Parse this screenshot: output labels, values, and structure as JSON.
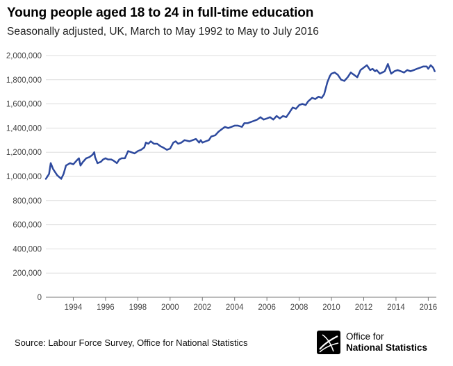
{
  "header": {
    "title": "Young people aged 18 to 24 in full-time education",
    "subtitle": "Seasonally adjusted, UK, March to May 1992 to May to July 2016"
  },
  "footer": {
    "source": "Source: Labour Force Survey, Office for National Statistics",
    "logo_line1": "Office for",
    "logo_line2": "National Statistics"
  },
  "colors": {
    "series": "#2e4a9e",
    "axis": "#777777",
    "grid": "#dddddd"
  },
  "chart_data": {
    "type": "line",
    "title": "Young people aged 18 to 24 in full-time education",
    "subtitle": "Seasonally adjusted, UK, March to May 1992 to May to July 2016",
    "xlim": [
      1992.3,
      2016.5
    ],
    "ylim": [
      0,
      2000000
    ],
    "yticks": [
      0,
      200000,
      400000,
      600000,
      800000,
      1000000,
      1200000,
      1400000,
      1600000,
      1800000,
      2000000
    ],
    "ytick_labels": [
      "0",
      "200,000",
      "400,000",
      "600,000",
      "800,000",
      "1,000,000",
      "1,200,000",
      "1,400,000",
      "1,600,000",
      "1,800,000",
      "2,000,000"
    ],
    "xticks": [
      1994,
      1996,
      1998,
      2000,
      2002,
      2004,
      2006,
      2008,
      2010,
      2012,
      2014,
      2016
    ],
    "xtick_labels": [
      "1994",
      "1996",
      "1998",
      "2000",
      "2002",
      "2004",
      "2006",
      "2008",
      "2010",
      "2012",
      "2014",
      "2016"
    ],
    "grid": true,
    "series": [
      {
        "x": [
          1992.3,
          1992.5,
          1992.6,
          1992.75,
          1993.0,
          1993.25,
          1993.4,
          1993.55,
          1993.8,
          1994.0,
          1994.2,
          1994.35,
          1994.45,
          1994.6,
          1994.8,
          1995.0,
          1995.2,
          1995.3,
          1995.35,
          1995.5,
          1995.7,
          1995.85,
          1996.0,
          1996.15,
          1996.35,
          1996.5,
          1996.7,
          1996.85,
          1997.0,
          1997.2,
          1997.4,
          1997.6,
          1997.8,
          1998.0,
          1998.2,
          1998.4,
          1998.5,
          1998.65,
          1998.8,
          1999.0,
          1999.2,
          1999.4,
          1999.55,
          1999.8,
          2000.0,
          2000.2,
          2000.35,
          2000.5,
          2000.7,
          2000.9,
          2001.2,
          2001.4,
          2001.6,
          2001.8,
          2001.9,
          2002.0,
          2002.2,
          2002.4,
          2002.55,
          2002.8,
          2003.0,
          2003.2,
          2003.4,
          2003.6,
          2003.8,
          2004.0,
          2004.2,
          2004.45,
          2004.6,
          2004.8,
          2005.0,
          2005.2,
          2005.4,
          2005.6,
          2005.8,
          2006.0,
          2006.2,
          2006.4,
          2006.6,
          2006.8,
          2007.0,
          2007.2,
          2007.4,
          2007.6,
          2007.8,
          2008.0,
          2008.2,
          2008.4,
          2008.55,
          2008.8,
          2009.0,
          2009.2,
          2009.4,
          2009.55,
          2009.75,
          2009.9,
          2010.0,
          2010.2,
          2010.4,
          2010.6,
          2010.8,
          2011.0,
          2011.2,
          2011.4,
          2011.6,
          2011.8,
          2012.0,
          2012.2,
          2012.4,
          2012.55,
          2012.7,
          2012.8,
          2013.0,
          2013.15,
          2013.3,
          2013.5,
          2013.7,
          2013.9,
          2014.1,
          2014.3,
          2014.5,
          2014.7,
          2014.9,
          2015.1,
          2015.3,
          2015.5,
          2015.7,
          2015.9,
          2016.0,
          2016.15,
          2016.3,
          2016.4
        ],
        "y": [
          980000,
          1020000,
          1110000,
          1060000,
          1010000,
          980000,
          1020000,
          1090000,
          1110000,
          1100000,
          1130000,
          1150000,
          1090000,
          1120000,
          1150000,
          1160000,
          1180000,
          1200000,
          1160000,
          1110000,
          1120000,
          1140000,
          1150000,
          1140000,
          1140000,
          1130000,
          1110000,
          1140000,
          1150000,
          1150000,
          1210000,
          1200000,
          1190000,
          1210000,
          1220000,
          1240000,
          1280000,
          1270000,
          1290000,
          1270000,
          1270000,
          1250000,
          1240000,
          1220000,
          1230000,
          1280000,
          1290000,
          1270000,
          1280000,
          1300000,
          1290000,
          1300000,
          1310000,
          1280000,
          1300000,
          1280000,
          1290000,
          1300000,
          1330000,
          1340000,
          1370000,
          1390000,
          1410000,
          1400000,
          1410000,
          1420000,
          1420000,
          1410000,
          1440000,
          1440000,
          1450000,
          1460000,
          1470000,
          1490000,
          1470000,
          1480000,
          1490000,
          1470000,
          1500000,
          1480000,
          1500000,
          1490000,
          1530000,
          1570000,
          1560000,
          1590000,
          1600000,
          1590000,
          1620000,
          1650000,
          1640000,
          1660000,
          1650000,
          1680000,
          1780000,
          1830000,
          1850000,
          1860000,
          1840000,
          1800000,
          1790000,
          1820000,
          1860000,
          1840000,
          1820000,
          1880000,
          1900000,
          1920000,
          1880000,
          1890000,
          1870000,
          1880000,
          1850000,
          1860000,
          1870000,
          1930000,
          1850000,
          1870000,
          1880000,
          1870000,
          1860000,
          1880000,
          1870000,
          1880000,
          1890000,
          1900000,
          1910000,
          1910000,
          1890000,
          1920000,
          1900000,
          1870000
        ]
      }
    ]
  }
}
